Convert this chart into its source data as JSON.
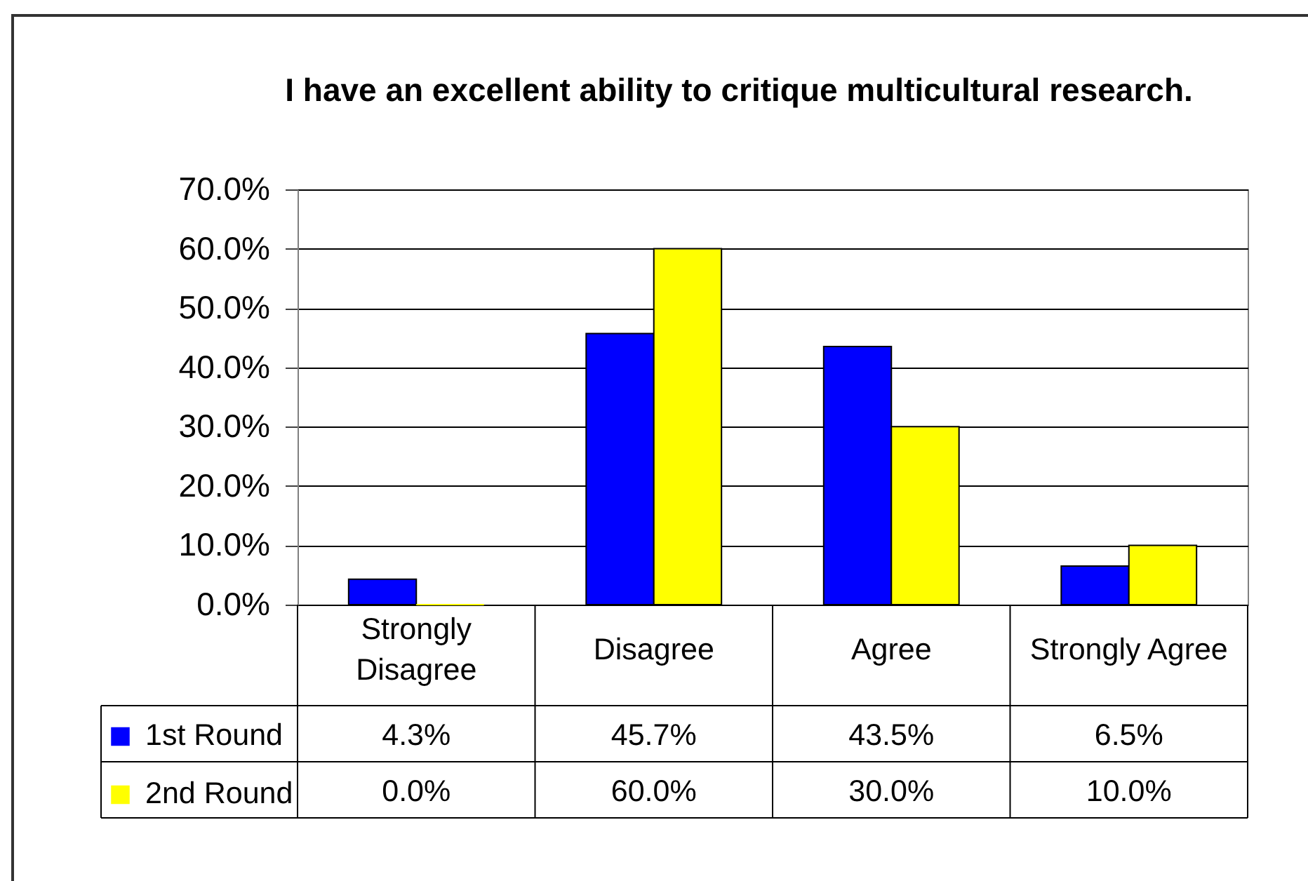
{
  "chart_data": {
    "type": "bar",
    "title": "I have an excellent ability to critique multicultural research.",
    "categories": [
      "Strongly Disagree",
      "Disagree",
      "Agree",
      "Strongly Agree"
    ],
    "series": [
      {
        "name": "1st Round",
        "color": "#0000ff",
        "values": [
          4.3,
          45.7,
          43.5,
          6.5
        ],
        "value_labels": [
          "4.3%",
          "45.7%",
          "43.5%",
          "6.5%"
        ]
      },
      {
        "name": "2nd Round",
        "color": "#ffff00",
        "values": [
          0.0,
          60.0,
          30.0,
          10.0
        ],
        "value_labels": [
          "0.0%",
          "60.0%",
          "30.0%",
          "10.0%"
        ]
      }
    ],
    "ylim": [
      0,
      70
    ],
    "yticks": [
      {
        "value": 0,
        "label": "0.0%"
      },
      {
        "value": 10,
        "label": "10.0%"
      },
      {
        "value": 20,
        "label": "20.0%"
      },
      {
        "value": 30,
        "label": "30.0%"
      },
      {
        "value": 40,
        "label": "40.0%"
      },
      {
        "value": 50,
        "label": "50.0%"
      },
      {
        "value": 60,
        "label": "60.0%"
      },
      {
        "value": 70,
        "label": "70.0%"
      }
    ],
    "grid": "y",
    "legend": "bottom left"
  }
}
